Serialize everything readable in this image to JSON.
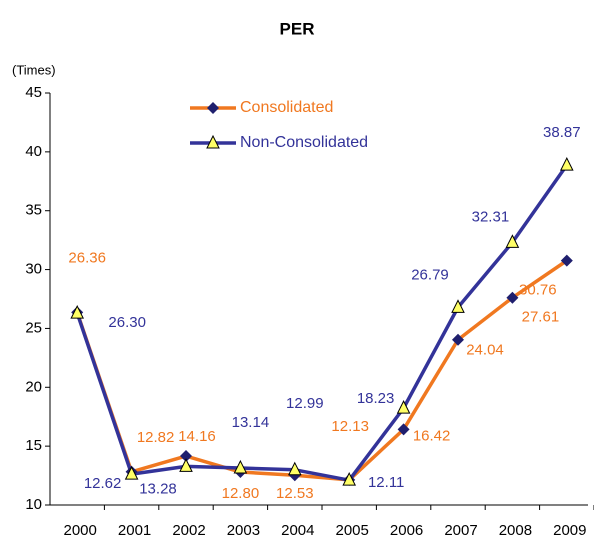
{
  "chart_data": {
    "type": "line",
    "title": "PER",
    "y_axis_label": "(Times)",
    "categories": [
      "2000",
      "2001",
      "2002",
      "2003",
      "2004",
      "2005",
      "2006",
      "2007",
      "2008",
      "2009"
    ],
    "series": [
      {
        "name": "Consolidated",
        "color": "#f07820",
        "marker": "diamond",
        "marker_color": "#1f1f6e",
        "values": [
          26.36,
          12.82,
          14.16,
          12.8,
          12.53,
          12.13,
          16.42,
          24.04,
          27.61,
          30.76
        ],
        "value_labels": [
          "26.36",
          "12.82",
          "14.16",
          "12.80",
          "12.53",
          "12.13",
          "16.42",
          "24.04",
          "27.61",
          "30.76"
        ]
      },
      {
        "name": "Non-Consolidated",
        "color": "#333399",
        "marker": "triangle",
        "marker_color": "#ffff66",
        "values": [
          26.3,
          12.62,
          13.28,
          13.14,
          12.99,
          12.11,
          18.23,
          26.79,
          32.31,
          38.87
        ],
        "value_labels": [
          "26.30",
          "12.62",
          "13.28",
          "13.14",
          "12.99",
          "12.11",
          "18.23",
          "26.79",
          "32.31",
          "38.87"
        ]
      }
    ],
    "ylim": [
      10,
      45
    ],
    "yticks": [
      10,
      15,
      20,
      25,
      30,
      35,
      40,
      45
    ],
    "grid": false,
    "legend": "top"
  }
}
